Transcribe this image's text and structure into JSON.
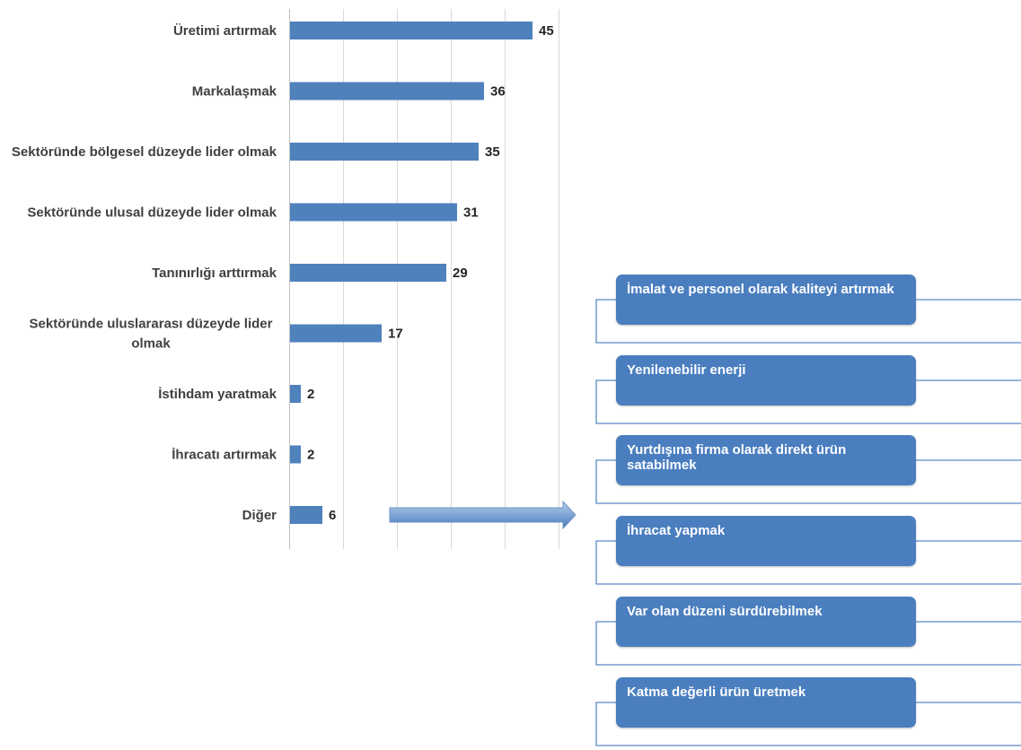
{
  "chart_data": {
    "type": "bar",
    "orientation": "horizontal",
    "categories": [
      "Üretimi artırmak",
      "Markalaşmak",
      "Sektöründe bölgesel düzeyde lider olmak",
      "Sektöründe ulusal düzeyde lider olmak",
      "Tanınırlığı arttırmak",
      "Sektöründe uluslararası düzeyde lider olmak",
      "İstihdam yaratmak",
      "İhracatı artırmak",
      "Diğer"
    ],
    "category_lines": [
      [
        "Üretimi artırmak"
      ],
      [
        "Markalaşmak"
      ],
      [
        "Sektöründe bölgesel düzeyde lider olmak"
      ],
      [
        "Sektöründe ulusal düzeyde lider olmak"
      ],
      [
        "Tanınırlığı arttırmak"
      ],
      [
        "Sektöründe uluslararası düzeyde lider",
        "olmak"
      ],
      [
        "İstihdam yaratmak"
      ],
      [
        "İhracatı artırmak"
      ],
      [
        "Diğer"
      ]
    ],
    "values": [
      45,
      36,
      35,
      31,
      29,
      17,
      2,
      2,
      6
    ],
    "xlim": [
      0,
      50
    ],
    "grid": true,
    "bar_color": "#4f81bd"
  },
  "other_breakdown": {
    "items": [
      "İmalat ve personel olarak kaliteyi artırmak",
      "Yenilenebilir enerji",
      "Yurtdışına firma olarak direkt ürün satabilmek",
      "İhracat yapmak",
      "Var olan düzeni sürdürebilmek",
      "Katma değerli ürün üretmek"
    ],
    "box_color": "#4a7ebf"
  }
}
